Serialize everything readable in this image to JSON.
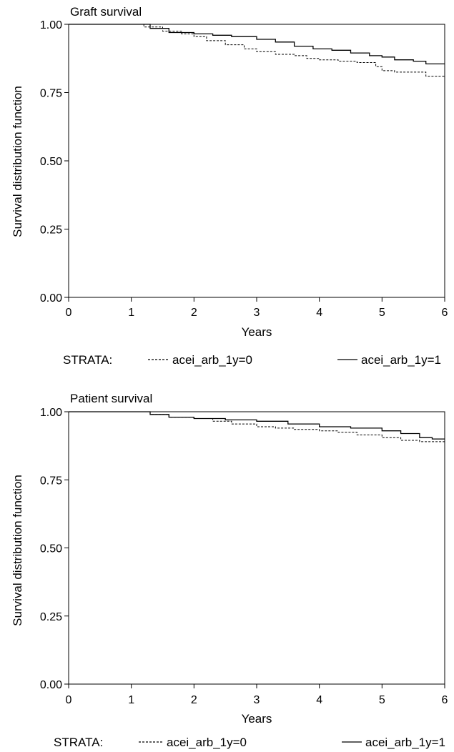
{
  "charts": [
    {
      "title": "Graft survival",
      "xlabel": "Years",
      "ylabel": "Survival distribution function",
      "x_ticks": [
        "0",
        "1",
        "2",
        "3",
        "4",
        "5",
        "6"
      ],
      "y_ticks": [
        "0.00",
        "0.25",
        "0.50",
        "0.75",
        "1.00"
      ],
      "legend_title": "STRATA:",
      "legend_items": [
        {
          "label": "acei_arb_1y=0",
          "dash": "dashed"
        },
        {
          "label": "acei_arb_1y=1",
          "dash": "solid"
        }
      ]
    },
    {
      "title": "Patient survival",
      "xlabel": "Years",
      "ylabel": "Survival distribution function",
      "x_ticks": [
        "0",
        "1",
        "2",
        "3",
        "4",
        "5",
        "6"
      ],
      "y_ticks": [
        "0.00",
        "0.25",
        "0.50",
        "0.75",
        "1.00"
      ],
      "legend_title": "STRATA:",
      "legend_items": [
        {
          "label": "acei_arb_1y=0",
          "dash": "dashed"
        },
        {
          "label": "acei_arb_1y=1",
          "dash": "solid"
        }
      ]
    }
  ],
  "chart_data": [
    {
      "type": "line",
      "title": "Graft survival",
      "xlabel": "Years",
      "ylabel": "Survival distribution function",
      "xlim": [
        0,
        6
      ],
      "ylim": [
        0,
        1
      ],
      "grid": false,
      "legend_position": "bottom",
      "series": [
        {
          "name": "acei_arb_1y=0",
          "style": "dashed",
          "x": [
            0,
            1.0,
            1.2,
            1.5,
            1.8,
            2.0,
            2.2,
            2.5,
            2.8,
            3.0,
            3.3,
            3.6,
            3.8,
            4.0,
            4.3,
            4.6,
            4.9,
            5.0,
            5.2,
            5.5,
            5.7,
            6.0
          ],
          "y": [
            1.0,
            1.0,
            0.99,
            0.975,
            0.965,
            0.955,
            0.94,
            0.925,
            0.91,
            0.9,
            0.89,
            0.885,
            0.875,
            0.87,
            0.865,
            0.86,
            0.845,
            0.83,
            0.825,
            0.825,
            0.81,
            0.81
          ]
        },
        {
          "name": "acei_arb_1y=1",
          "style": "solid",
          "x": [
            0,
            1.0,
            1.3,
            1.6,
            2.0,
            2.3,
            2.6,
            3.0,
            3.3,
            3.6,
            3.9,
            4.2,
            4.5,
            4.8,
            5.0,
            5.2,
            5.5,
            5.7,
            6.0
          ],
          "y": [
            1.0,
            1.0,
            0.985,
            0.97,
            0.965,
            0.96,
            0.955,
            0.945,
            0.935,
            0.92,
            0.91,
            0.905,
            0.895,
            0.885,
            0.88,
            0.87,
            0.865,
            0.855,
            0.855
          ]
        }
      ]
    },
    {
      "type": "line",
      "title": "Patient survival",
      "xlabel": "Years",
      "ylabel": "Survival distribution function",
      "xlim": [
        0,
        6
      ],
      "ylim": [
        0,
        1
      ],
      "grid": false,
      "legend_position": "bottom",
      "series": [
        {
          "name": "acei_arb_1y=0",
          "style": "dashed",
          "x": [
            0,
            1.0,
            1.3,
            1.6,
            2.0,
            2.3,
            2.6,
            3.0,
            3.3,
            3.6,
            4.0,
            4.3,
            4.6,
            5.0,
            5.3,
            5.6,
            6.0
          ],
          "y": [
            1.0,
            1.0,
            0.99,
            0.98,
            0.975,
            0.965,
            0.955,
            0.945,
            0.94,
            0.935,
            0.93,
            0.925,
            0.915,
            0.905,
            0.895,
            0.89,
            0.885
          ]
        },
        {
          "name": "acei_arb_1y=1",
          "style": "solid",
          "x": [
            0,
            1.0,
            1.3,
            1.6,
            2.0,
            2.5,
            3.0,
            3.5,
            4.0,
            4.5,
            5.0,
            5.3,
            5.6,
            5.8,
            6.0
          ],
          "y": [
            1.0,
            1.0,
            0.99,
            0.98,
            0.975,
            0.97,
            0.965,
            0.955,
            0.945,
            0.94,
            0.93,
            0.92,
            0.905,
            0.9,
            0.9
          ]
        }
      ]
    }
  ]
}
